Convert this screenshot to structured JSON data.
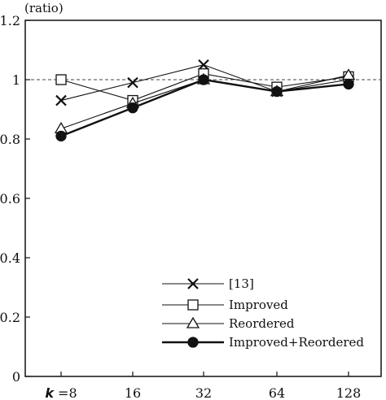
{
  "chart_data": {
    "type": "line",
    "ylabel": "(ratio)",
    "x_prefix": "k",
    "x_prefix_sep": " =",
    "categories": [
      "8",
      "16",
      "32",
      "64",
      "128"
    ],
    "ylim": [
      0,
      1.2
    ],
    "yticks": [
      "0",
      "0.2",
      "0.4",
      "0.6",
      "0.8",
      "1",
      "1.2"
    ],
    "reference_line": 1,
    "grid": false,
    "legend_position": "bottom-right",
    "series": [
      {
        "name": "[13]",
        "marker": "x",
        "values": [
          0.93,
          0.99,
          1.05,
          0.96,
          1.0
        ]
      },
      {
        "name": "Improved",
        "marker": "square",
        "values": [
          1.0,
          0.93,
          1.02,
          0.975,
          1.01
        ]
      },
      {
        "name": "Reordered",
        "marker": "triangle",
        "values": [
          0.835,
          0.92,
          1.0,
          0.96,
          1.015
        ]
      },
      {
        "name": "Improved+Reordered",
        "marker": "circle",
        "values": [
          0.81,
          0.905,
          1.0,
          0.96,
          0.985
        ]
      }
    ]
  }
}
